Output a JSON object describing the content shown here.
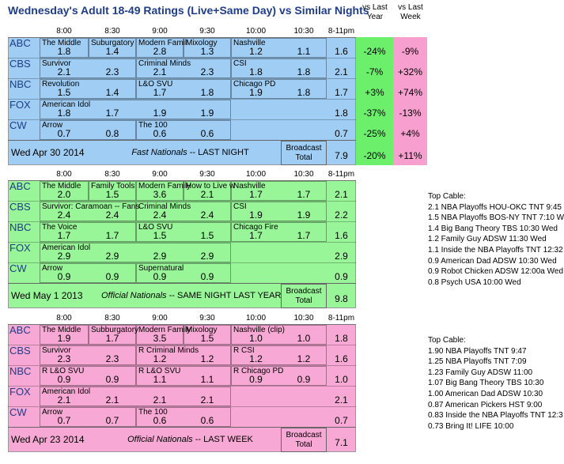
{
  "title": "Wednesday's Adult 18-49 Ratings (Live+Same Day) vs Similar Nights",
  "compare_headers": [
    "vs Last Year",
    "vs Last Week"
  ],
  "tables": [
    {
      "header": [
        "8:00",
        "8:30",
        "9:00",
        "9:30",
        "10:00",
        "10:30",
        "8-11pm"
      ],
      "rows": [
        {
          "network": "ABC",
          "shows": [
            "The Middle",
            "Suburgatory",
            "Modern Famil",
            "Mixology",
            "Nashville",
            null
          ],
          "ratings": [
            "1.8",
            "1.4",
            "2.8",
            "1.3",
            "1.2",
            "1.1"
          ],
          "total": "1.6",
          "vs_year": "-24%",
          "vs_week": "-9%"
        },
        {
          "network": "CBS",
          "shows": [
            "Survivor",
            null,
            "Criminal Minds",
            null,
            "CSI",
            null
          ],
          "ratings": [
            "2.1",
            "2.3",
            "2.1",
            "2.3",
            "1.8",
            "1.8"
          ],
          "total": "2.1",
          "vs_year": "-7%",
          "vs_week": "+32%"
        },
        {
          "network": "NBC",
          "shows": [
            "Revolution",
            null,
            "L&O SVU",
            null,
            "Chicago PD",
            null
          ],
          "ratings": [
            "1.5",
            "1.4",
            "1.7",
            "1.8",
            "1.9",
            "1.8"
          ],
          "total": "1.7",
          "vs_year": "+3%",
          "vs_week": "+74%"
        },
        {
          "network": "FOX",
          "shows": [
            "American Idol",
            null,
            null,
            null,
            null,
            null
          ],
          "ratings": [
            "1.8",
            "1.7",
            "1.9",
            "1.9",
            null,
            null
          ],
          "total": "1.8",
          "vs_year": "-37%",
          "vs_week": "-13%"
        },
        {
          "network": "CW",
          "shows": [
            "Arrow",
            null,
            "The 100",
            null,
            null,
            null
          ],
          "ratings": [
            "0.7",
            "0.8",
            "0.6",
            "0.6",
            null,
            null
          ],
          "total": "0.7",
          "vs_year": "-25%",
          "vs_week": "+4%"
        }
      ],
      "footer": {
        "date": "Wed Apr 30 2014",
        "note_italic": "Fast Nationals",
        "note": "-- LAST NIGHT",
        "total_label": "Broadcast Total",
        "total": "7.9",
        "vs_year": "-20%",
        "vs_week": "+11%"
      }
    },
    {
      "header": [
        "8:00",
        "8:30",
        "9:00",
        "9:30",
        "10:00",
        "10:30",
        "8-11pm"
      ],
      "rows": [
        {
          "network": "ABC",
          "shows": [
            "The Middle",
            "Family Tools",
            "Modern Family",
            "How to Live w",
            "Nashville",
            null
          ],
          "ratings": [
            "2.0",
            "1.5",
            "3.6",
            "2.1",
            "1.7",
            "1.7"
          ],
          "total": "2.1"
        },
        {
          "network": "CBS",
          "shows": [
            "Survivor: Caramoan -- Fans",
            null,
            "Criminal Minds",
            null,
            "CSI",
            null
          ],
          "ratings": [
            "2.4",
            "2.4",
            "2.4",
            "2.4",
            "1.9",
            "1.9"
          ],
          "total": "2.2"
        },
        {
          "network": "NBC",
          "shows": [
            "The Voice",
            null,
            "L&O SVU",
            null,
            "Chicago Fire",
            null
          ],
          "ratings": [
            "1.7",
            "1.7",
            "1.5",
            "1.5",
            "1.7",
            "1.7"
          ],
          "total": "1.6"
        },
        {
          "network": "FOX",
          "shows": [
            "American Idol",
            null,
            null,
            null,
            null,
            null
          ],
          "ratings": [
            "2.9",
            "2.9",
            "2.9",
            "2.9",
            null,
            null
          ],
          "total": "2.9"
        },
        {
          "network": "CW",
          "shows": [
            "Arrow",
            null,
            "Supernatural",
            null,
            null,
            null
          ],
          "ratings": [
            "0.9",
            "0.9",
            "0.9",
            "0.9",
            null,
            null
          ],
          "total": "0.9"
        }
      ],
      "footer": {
        "date": "Wed May 1 2013",
        "note_italic": "Official Nationals",
        "note": "-- SAME NIGHT LAST YEAR",
        "total_label": "Broadcast Total",
        "total": "9.8"
      },
      "top_cable": [
        "Top Cable:",
        "2.1 NBA Playoffs HOU-OKC TNT 9:45",
        "1.5 NBA Playoffs BOS-NY TNT 7:10 W",
        "1.4 Big Bang Theory TBS 10:30 Wed",
        "1.2 Family Guy ADSW 11:30 Wed",
        "1.1 Inside the NBA Playoffs TNT 12:32",
        "0.9 American Dad ADSW 10:30 Wed",
        "0.9 Robot Chicken ADSW 12:00a Wed",
        "0.8 Psych USA 10:00 Wed"
      ]
    },
    {
      "header": [
        "8:00",
        "8:30",
        "9:00",
        "9:30",
        "10:00",
        "10:30",
        "8-11pm"
      ],
      "rows": [
        {
          "network": "ABC",
          "shows": [
            "The Middle",
            "Subburgatory",
            "Modern Family",
            "Mixology",
            "Nashville (clip)",
            null
          ],
          "ratings": [
            "1.9",
            "1.7",
            "3.5",
            "1.5",
            "1.0",
            "1.0"
          ],
          "total": "1.8"
        },
        {
          "network": "CBS",
          "shows": [
            "Survivor",
            null,
            "R Criminal Minds",
            null,
            "R CSI",
            null
          ],
          "ratings": [
            "2.3",
            "2.3",
            "1.2",
            "1.2",
            "1.2",
            "1.2"
          ],
          "total": "1.6"
        },
        {
          "network": "NBC",
          "shows": [
            "R L&O SVU",
            null,
            "R L&O SVU",
            null,
            "R Chicago PD",
            null
          ],
          "ratings": [
            "0.9",
            "0.9",
            "1.1",
            "1.1",
            "0.9",
            "0.9"
          ],
          "total": "1.0"
        },
        {
          "network": "FOX",
          "shows": [
            "American Idol",
            null,
            null,
            null,
            null,
            null
          ],
          "ratings": [
            "2.1",
            "2.1",
            "2.1",
            "2.1",
            null,
            null
          ],
          "total": "2.1"
        },
        {
          "network": "CW",
          "shows": [
            "Arrow",
            null,
            "The 100",
            null,
            null,
            null
          ],
          "ratings": [
            "0.7",
            "0.7",
            "0.6",
            "0.6",
            null,
            null
          ],
          "total": "0.7"
        }
      ],
      "footer": {
        "date": "Wed Apr 23 2014",
        "note_italic": "Official Nationals",
        "note": "-- LAST WEEK",
        "total_label": "Broadcast Total",
        "total": "7.1"
      },
      "top_cable": [
        "Top Cable:",
        "1.90 NBA Playoffs TNT 9:47",
        "1.25 NBA Playoffs TNT 7:09",
        "1.23 Family Guy ADSW 11:00",
        "1.07 Big Bang Theory TBS 10:30",
        "1.00 American Dad ADSW 10:30",
        "0.87 American Pickers HST 9:00",
        "0.83 Inside the NBA Playoffs TNT 12:3",
        "0.73 Bring It! LIFE 10:00"
      ]
    }
  ]
}
